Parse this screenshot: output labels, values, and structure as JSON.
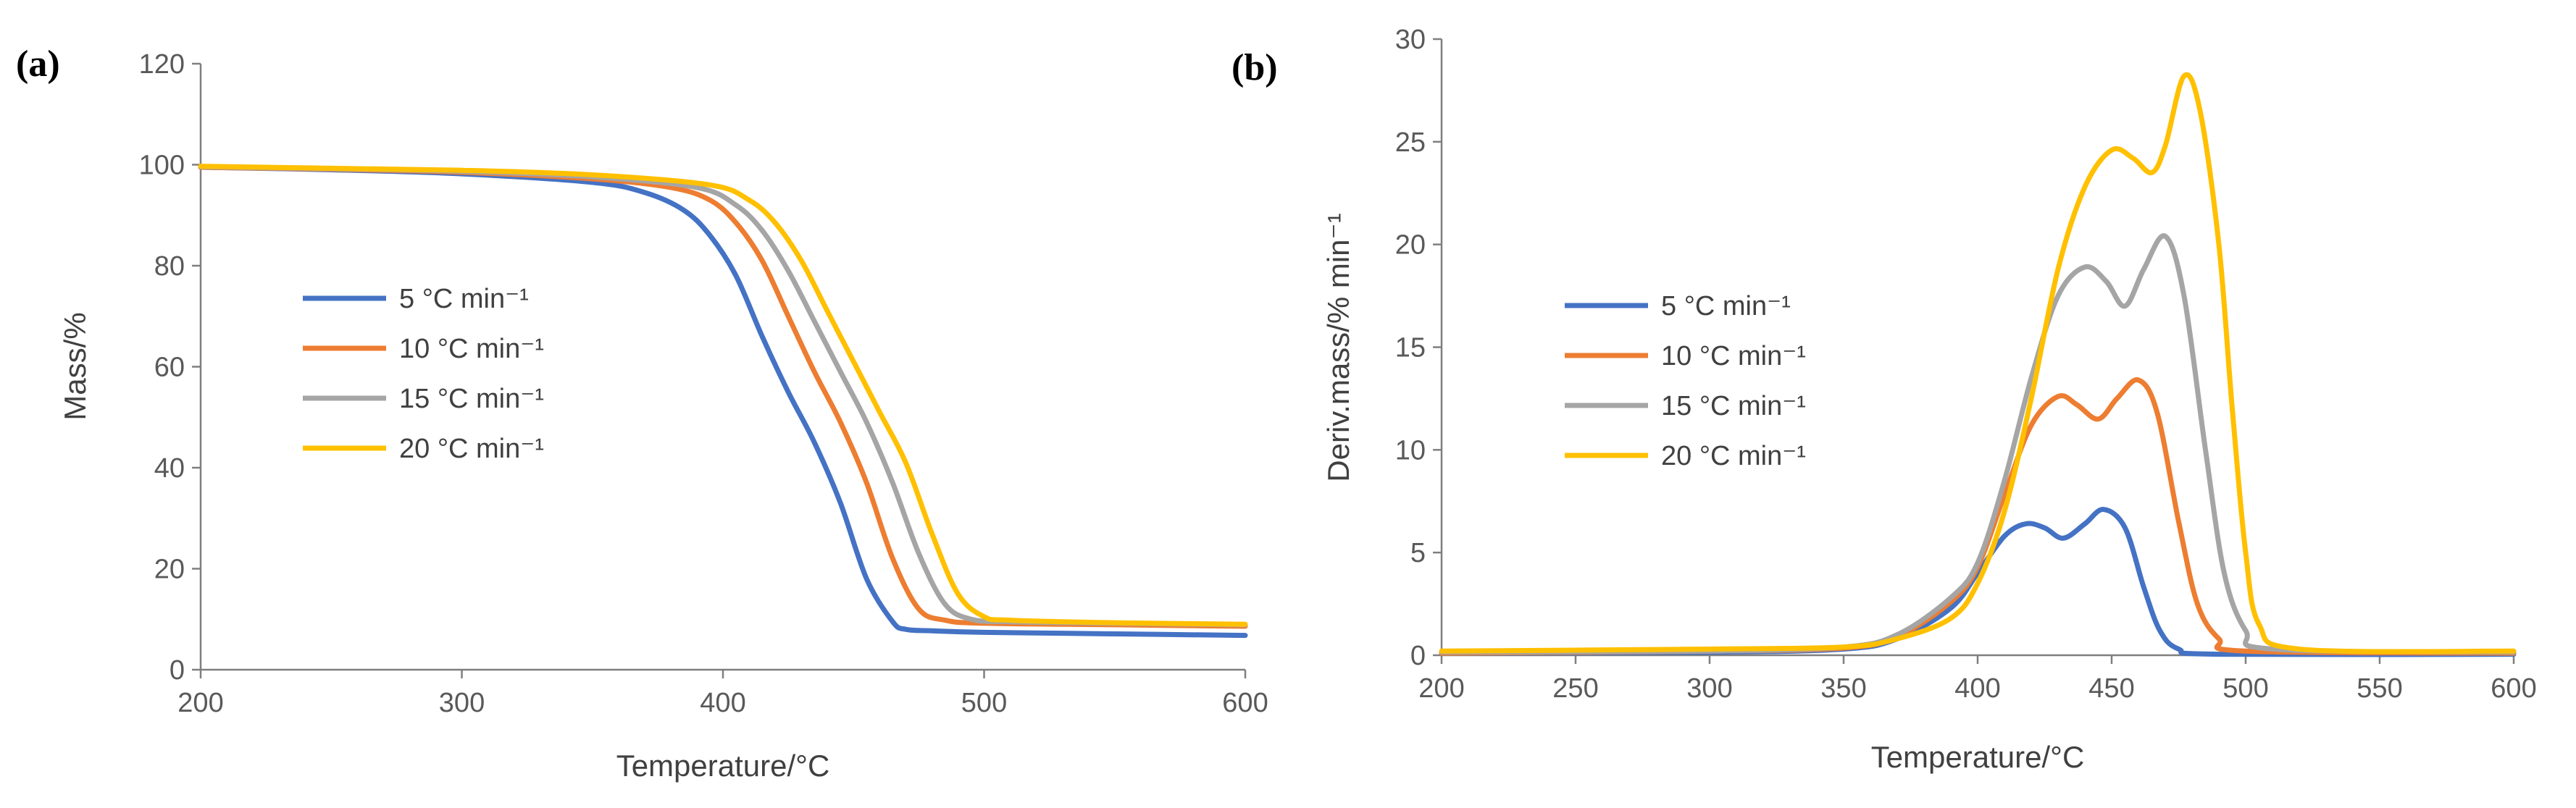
{
  "chart_data": [
    {
      "type": "line",
      "panel_label": "(a)",
      "xlabel": "Temperature/°C",
      "ylabel": "Mass/%",
      "xlim": [
        200,
        600
      ],
      "ylim": [
        0,
        120
      ],
      "xticks": [
        200,
        300,
        400,
        500,
        600
      ],
      "yticks": [
        0,
        20,
        40,
        60,
        80,
        100,
        120
      ],
      "grid": false,
      "legend_position": "center-left",
      "series": [
        {
          "name": "5 °C min⁻¹",
          "color": "#4472c4",
          "x": [
            200,
            250,
            300,
            350,
            370,
            385,
            395,
            405,
            415,
            425,
            435,
            445,
            455,
            465,
            470,
            480,
            500,
            550,
            600
          ],
          "y": [
            99.5,
            99,
            98.2,
            96.5,
            94.5,
            91,
            86,
            78,
            66,
            55,
            45,
            33,
            18,
            9.5,
            8,
            7.7,
            7.4,
            7.1,
            6.8
          ]
        },
        {
          "name": "10 °C min⁻¹",
          "color": "#ed7d31",
          "x": [
            200,
            250,
            300,
            350,
            380,
            395,
            405,
            415,
            425,
            435,
            445,
            455,
            465,
            475,
            485,
            500,
            550,
            600
          ],
          "y": [
            99.5,
            99.1,
            98.5,
            97.2,
            95.5,
            93,
            88.5,
            81,
            70,
            59,
            49,
            37,
            22,
            12,
            9.8,
            9.2,
            8.9,
            8.6
          ]
        },
        {
          "name": "15 °C min⁻¹",
          "color": "#a5a5a5",
          "x": [
            200,
            250,
            300,
            350,
            390,
            405,
            415,
            425,
            435,
            445,
            455,
            465,
            475,
            485,
            495,
            510,
            550,
            600
          ],
          "y": [
            99.6,
            99.2,
            98.7,
            97.6,
            95.5,
            92,
            87,
            79,
            69,
            59,
            49,
            37,
            23,
            13,
            10,
            9.5,
            9.2,
            8.9
          ]
        },
        {
          "name": "20 °C min⁻¹",
          "color": "#ffc000",
          "x": [
            200,
            250,
            300,
            350,
            395,
            410,
            420,
            430,
            440,
            450,
            460,
            470,
            480,
            490,
            500,
            510,
            550,
            600
          ],
          "y": [
            99.7,
            99.3,
            98.9,
            98,
            96,
            93,
            88.5,
            81,
            71,
            61,
            51,
            41,
            27,
            15,
            10.5,
            9.8,
            9.3,
            9
          ]
        }
      ]
    },
    {
      "type": "line",
      "panel_label": "(b)",
      "xlabel": "Temperature/°C",
      "ylabel": "Deriv.mass/% min⁻¹",
      "xlim": [
        200,
        600
      ],
      "ylim": [
        0,
        30
      ],
      "xticks": [
        200,
        250,
        300,
        350,
        400,
        450,
        500,
        550,
        600
      ],
      "yticks": [
        0,
        5,
        10,
        15,
        20,
        25,
        30
      ],
      "grid": false,
      "legend_position": "center-left",
      "series": [
        {
          "name": "5 °C min⁻¹",
          "color": "#4472c4",
          "x": [
            200,
            300,
            350,
            370,
            390,
            400,
            410,
            418,
            425,
            432,
            440,
            447,
            455,
            462,
            468,
            475,
            490,
            600
          ],
          "y": [
            0.1,
            0.15,
            0.3,
            0.8,
            2.3,
            4,
            5.8,
            6.4,
            6.2,
            5.7,
            6.4,
            7.1,
            6.2,
            3.3,
            1.2,
            0.3,
            0.05,
            0.05
          ]
        },
        {
          "name": "10 °C min⁻¹",
          "color": "#ed7d31",
          "x": [
            200,
            300,
            350,
            370,
            390,
            400,
            410,
            420,
            430,
            437,
            445,
            452,
            460,
            467,
            475,
            482,
            490,
            500,
            600
          ],
          "y": [
            0.1,
            0.2,
            0.35,
            0.9,
            2.6,
            4.3,
            7.8,
            11.2,
            12.6,
            12.2,
            11.5,
            12.5,
            13.4,
            11.8,
            6.5,
            2.5,
            0.8,
            0.2,
            0.1
          ]
        },
        {
          "name": "15 °C min⁻¹",
          "color": "#a5a5a5",
          "x": [
            200,
            300,
            350,
            370,
            390,
            400,
            410,
            420,
            430,
            440,
            448,
            455,
            462,
            470,
            477,
            485,
            492,
            500,
            510,
            600
          ],
          "y": [
            0.15,
            0.2,
            0.4,
            1,
            2.8,
            4.5,
            8.5,
            13.5,
            17.5,
            18.9,
            18.2,
            17,
            18.8,
            20.4,
            17.5,
            10,
            4,
            1.2,
            0.3,
            0.15
          ]
        },
        {
          "name": "20 °C min⁻¹",
          "color": "#ffc000",
          "x": [
            200,
            300,
            350,
            370,
            390,
            400,
            410,
            420,
            430,
            440,
            450,
            458,
            465,
            470,
            477,
            483,
            490,
            495,
            500,
            505,
            520,
            600
          ],
          "y": [
            0.2,
            0.3,
            0.4,
            0.8,
            1.8,
            3.5,
            7,
            12.5,
            18.8,
            22.8,
            24.6,
            24.2,
            23.5,
            24.8,
            28.2,
            26.5,
            20,
            12,
            5,
            1.5,
            0.3,
            0.2
          ]
        }
      ]
    }
  ]
}
